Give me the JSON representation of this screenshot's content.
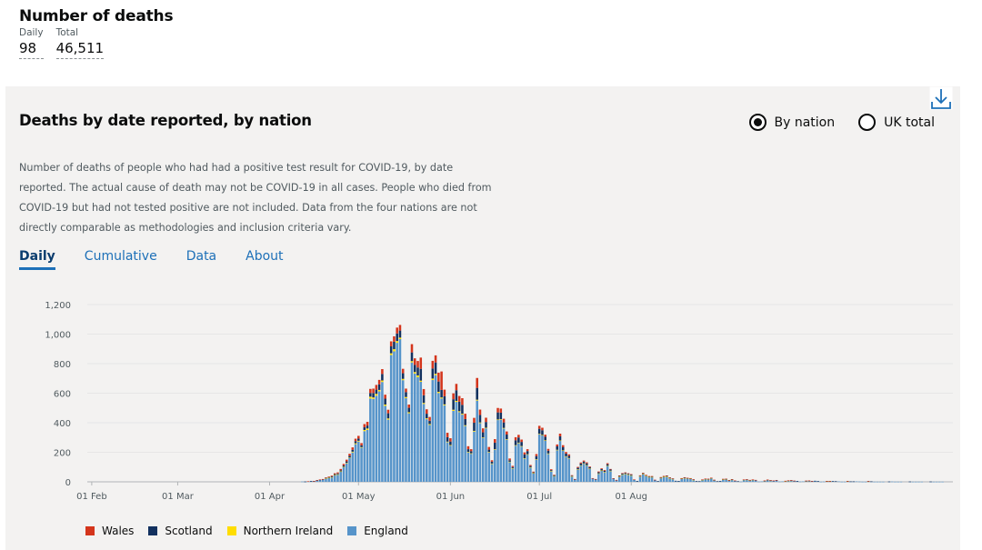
{
  "headline": {
    "title": "Number of deaths",
    "daily_label": "Daily",
    "daily_value": "98",
    "total_label": "Total",
    "total_value": "46,511"
  },
  "card": {
    "title": "Deaths by date reported, by nation",
    "radio_by_nation": "By nation",
    "radio_uk_total": "UK total",
    "description": "Number of deaths of people who had had a positive test result for COVID-19, by date reported. The actual cause of death may not be COVID-19 in all cases. People who died from COVID-19 but had not tested positive are not included. Data from the four nations are not directly comparable as methodologies and inclusion criteria vary.",
    "tabs": [
      "Daily",
      "Cumulative",
      "Data",
      "About"
    ]
  },
  "colors": {
    "wales": "#d4351c",
    "scotland": "#12315f",
    "northern_ireland": "#ffdd00",
    "england": "#5694ca"
  },
  "chart_data": {
    "type": "bar",
    "stacked": true,
    "title": "Deaths by date reported, by nation",
    "ylim": [
      0,
      1200
    ],
    "yticks": [
      0,
      200,
      400,
      600,
      800,
      1000,
      1200
    ],
    "ytick_labels": [
      "0",
      "200",
      "400",
      "600",
      "800",
      "1,000",
      "1,200"
    ],
    "xtick_labels": [
      "01 Feb",
      "01 Mar",
      "01 Apr",
      "01 May",
      "01 Jun",
      "01 Jul",
      "01 Aug"
    ],
    "xtick_day_index": [
      1,
      30,
      61,
      91,
      122,
      152,
      183
    ],
    "start_date": "31 Dec",
    "legend": [
      "Wales",
      "Scotland",
      "Northern Ireland",
      "England"
    ],
    "legend_position": "bottom-left",
    "series": [
      {
        "name": "England",
        "values": [
          0,
          0,
          0,
          0,
          0,
          0,
          0,
          0,
          0,
          0,
          0,
          0,
          0,
          0,
          0,
          0,
          0,
          0,
          0,
          0,
          0,
          0,
          0,
          0,
          0,
          0,
          0,
          0,
          0,
          0,
          0,
          0,
          0,
          0,
          0,
          0,
          0,
          0,
          0,
          0,
          0,
          0,
          0,
          0,
          0,
          0,
          0,
          0,
          0,
          0,
          0,
          0,
          0,
          0,
          0,
          0,
          0,
          0,
          0,
          0,
          0,
          0,
          0,
          0,
          0,
          0,
          0,
          0,
          0,
          0,
          0,
          0,
          2,
          1,
          3,
          5,
          4,
          9,
          12,
          14,
          22,
          27,
          31,
          44,
          49,
          70,
          100,
          125,
          160,
          199,
          255,
          273,
          231,
          343,
          351,
          564,
          561,
          583,
          612,
          676,
          514,
          421,
          858,
          883,
          941,
          966,
          688,
          566,
          464,
          808,
          733,
          708,
          677,
          527,
          424,
          385,
          689,
          722,
          601,
          564,
          518,
          268,
          245,
          480,
          541,
          472,
          455,
          378,
          200,
          190,
          340,
          550,
          397,
          296,
          362,
          199,
          122,
          218,
          418,
          420,
          361,
          286,
          134,
          91,
          245,
          262,
          239,
          158,
          185,
          98,
          58,
          151,
          322,
          314,
          279,
          190,
          72,
          38,
          215,
          278,
          211,
          171,
          160,
          37,
          14,
          84,
          111,
          124,
          112,
          89,
          21,
          16,
          56,
          76,
          66,
          108,
          74,
          21,
          10,
          34,
          49,
          53,
          49,
          43,
          13,
          5,
          37,
          52,
          40,
          32,
          32,
          12,
          4,
          26,
          33,
          36,
          24,
          19,
          6,
          5,
          21,
          25,
          23,
          21,
          13,
          4,
          3,
          12,
          18,
          17,
          24,
          11,
          3,
          5,
          16,
          17,
          9,
          14,
          7,
          3,
          2,
          13,
          14,
          10,
          13,
          11,
          2,
          3,
          6,
          12,
          8,
          7,
          10,
          2,
          3,
          4,
          7,
          8,
          6,
          5,
          2,
          3,
          5,
          6,
          4,
          6,
          4,
          1,
          2,
          3,
          3,
          4,
          3,
          3,
          1,
          1,
          3,
          2,
          2,
          3,
          2,
          1,
          1,
          2,
          2,
          1,
          1,
          1,
          1,
          0,
          1,
          2,
          1,
          1,
          1,
          0,
          0,
          1,
          1,
          1,
          1,
          1,
          0,
          0,
          1,
          1,
          1,
          1,
          1,
          0,
          0
        ]
      },
      {
        "name": "Northern Ireland",
        "values": [
          0,
          0,
          0,
          0,
          0,
          0,
          0,
          0,
          0,
          0,
          0,
          0,
          0,
          0,
          0,
          0,
          0,
          0,
          0,
          0,
          0,
          0,
          0,
          0,
          0,
          0,
          0,
          0,
          0,
          0,
          0,
          0,
          0,
          0,
          0,
          0,
          0,
          0,
          0,
          0,
          0,
          0,
          0,
          0,
          0,
          0,
          0,
          0,
          0,
          0,
          0,
          0,
          0,
          0,
          0,
          0,
          0,
          0,
          0,
          0,
          0,
          0,
          0,
          0,
          0,
          0,
          0,
          0,
          0,
          0,
          0,
          0,
          0,
          0,
          0,
          0,
          0,
          0,
          0,
          0,
          1,
          1,
          1,
          2,
          2,
          1,
          2,
          3,
          4,
          5,
          6,
          5,
          4,
          8,
          10,
          12,
          10,
          12,
          10,
          10,
          9,
          8,
          12,
          15,
          12,
          10,
          9,
          8,
          7,
          9,
          10,
          12,
          8,
          7,
          6,
          6,
          10,
          9,
          8,
          7,
          6,
          4,
          4,
          8,
          7,
          6,
          6,
          5,
          3,
          3,
          5,
          6,
          5,
          4,
          4,
          3,
          2,
          3,
          4,
          4,
          4,
          3,
          2,
          2,
          3,
          3,
          3,
          2,
          2,
          1,
          1,
          2,
          3,
          3,
          2,
          2,
          1,
          1,
          2,
          2,
          2,
          2,
          1,
          1,
          0,
          1,
          1,
          1,
          1,
          1,
          0,
          0,
          1,
          1,
          1,
          1,
          1,
          0,
          0,
          1,
          1,
          1,
          1,
          1,
          0,
          0,
          1,
          1,
          1,
          1,
          1,
          0,
          0,
          1,
          1,
          1,
          1,
          1,
          0,
          0,
          1,
          1,
          1,
          1,
          1,
          0,
          0,
          1,
          1,
          1,
          1,
          1,
          0,
          0,
          1,
          1,
          1,
          1,
          0,
          0,
          0,
          1,
          1,
          1,
          1,
          0,
          0,
          0,
          1,
          1,
          1,
          0,
          0,
          0,
          0,
          1,
          1,
          1,
          0,
          0,
          0,
          0,
          1,
          1,
          0,
          0,
          0,
          0,
          0,
          1,
          1,
          0,
          0,
          0,
          0,
          0,
          1,
          0,
          0,
          0,
          0,
          0,
          0,
          1,
          0,
          0,
          0,
          0,
          0,
          0,
          0,
          0,
          0,
          0,
          0,
          0,
          0,
          0,
          0,
          0,
          0,
          0,
          0,
          0,
          0,
          0,
          0,
          0,
          0,
          0,
          0,
          0,
          0,
          0,
          0
        ]
      },
      {
        "name": "Scotland",
        "values": [
          0,
          0,
          0,
          0,
          0,
          0,
          0,
          0,
          0,
          0,
          0,
          0,
          0,
          0,
          0,
          0,
          0,
          0,
          0,
          0,
          0,
          0,
          0,
          0,
          0,
          0,
          0,
          0,
          0,
          0,
          0,
          0,
          0,
          0,
          0,
          0,
          0,
          0,
          0,
          0,
          0,
          0,
          0,
          0,
          0,
          0,
          0,
          0,
          0,
          0,
          0,
          0,
          0,
          0,
          0,
          0,
          0,
          0,
          0,
          0,
          0,
          0,
          0,
          0,
          0,
          0,
          0,
          0,
          0,
          0,
          0,
          0,
          0,
          1,
          0,
          1,
          1,
          2,
          2,
          3,
          4,
          4,
          5,
          6,
          6,
          7,
          9,
          10,
          12,
          13,
          14,
          15,
          12,
          18,
          20,
          25,
          30,
          29,
          38,
          44,
          40,
          35,
          47,
          50,
          51,
          48,
          38,
          33,
          30,
          59,
          48,
          54,
          80,
          52,
          31,
          22,
          68,
          77,
          70,
          51,
          55,
          30,
          24,
          71,
          72,
          65,
          60,
          42,
          18,
          14,
          55,
          80,
          51,
          35,
          39,
          16,
          12,
          44,
          48,
          44,
          37,
          31,
          10,
          7,
          33,
          35,
          28,
          25,
          21,
          8,
          5,
          21,
          34,
          32,
          24,
          19,
          6,
          5,
          23,
          28,
          21,
          18,
          15,
          4,
          3,
          10,
          12,
          12,
          12,
          9,
          3,
          2,
          8,
          9,
          8,
          10,
          8,
          2,
          2,
          5,
          6,
          6,
          5,
          5,
          2,
          1,
          4,
          5,
          4,
          4,
          4,
          1,
          1,
          3,
          4,
          4,
          3,
          2,
          1,
          1,
          2,
          3,
          2,
          2,
          2,
          1,
          1,
          2,
          2,
          2,
          2,
          1,
          1,
          1,
          2,
          2,
          1,
          2,
          1,
          1,
          0,
          1,
          1,
          1,
          1,
          1,
          0,
          0,
          1,
          1,
          1,
          1,
          1,
          0,
          0,
          1,
          1,
          1,
          1,
          1,
          0,
          0,
          1,
          1,
          1,
          1,
          1,
          0,
          0,
          1,
          1,
          1,
          1,
          0,
          0,
          0,
          1,
          1,
          1,
          0,
          0,
          0,
          0,
          1,
          1,
          0,
          0,
          0,
          0,
          0,
          1,
          0,
          0,
          0,
          0,
          0,
          0,
          1,
          0,
          0,
          0,
          0,
          0,
          0,
          1,
          0,
          0,
          0,
          0,
          0,
          0
        ]
      },
      {
        "name": "Wales",
        "values": [
          0,
          0,
          0,
          0,
          0,
          0,
          0,
          0,
          0,
          0,
          0,
          0,
          0,
          0,
          0,
          0,
          0,
          0,
          0,
          0,
          0,
          0,
          0,
          0,
          0,
          0,
          0,
          0,
          0,
          0,
          0,
          0,
          0,
          0,
          0,
          0,
          0,
          0,
          0,
          0,
          0,
          0,
          0,
          0,
          0,
          0,
          0,
          0,
          0,
          0,
          0,
          0,
          0,
          0,
          0,
          0,
          0,
          0,
          0,
          0,
          0,
          0,
          0,
          0,
          0,
          0,
          0,
          0,
          0,
          0,
          0,
          0,
          0,
          0,
          1,
          0,
          1,
          1,
          2,
          2,
          3,
          4,
          5,
          6,
          7,
          9,
          10,
          12,
          14,
          16,
          17,
          18,
          15,
          22,
          25,
          28,
          30,
          32,
          30,
          33,
          27,
          24,
          34,
          37,
          40,
          38,
          30,
          24,
          22,
          56,
          45,
          44,
          76,
          42,
          30,
          26,
          52,
          48,
          60,
          125,
          45,
          30,
          22,
          40,
          43,
          38,
          45,
          36,
          20,
          14,
          33,
          67,
          36,
          27,
          29,
          18,
          10,
          24,
          30,
          28,
          25,
          21,
          12,
          8,
          21,
          18,
          16,
          14,
          13,
          7,
          5,
          14,
          20,
          17,
          14,
          12,
          6,
          4,
          13,
          18,
          14,
          11,
          10,
          3,
          2,
          6,
          7,
          7,
          7,
          5,
          1,
          1,
          5,
          5,
          5,
          7,
          4,
          1,
          1,
          3,
          3,
          4,
          3,
          3,
          1,
          0,
          2,
          3,
          2,
          2,
          2,
          1,
          0,
          2,
          2,
          2,
          2,
          1,
          0,
          0,
          1,
          2,
          1,
          1,
          1,
          0,
          0,
          1,
          1,
          1,
          1,
          1,
          0,
          0,
          1,
          1,
          1,
          1,
          1,
          0,
          0,
          1,
          1,
          1,
          1,
          1,
          0,
          0,
          1,
          1,
          1,
          1,
          1,
          0,
          0,
          1,
          1,
          1,
          1,
          0,
          0,
          0,
          1,
          1,
          1,
          0,
          0,
          0,
          0,
          1,
          1,
          0,
          0,
          0,
          0,
          0,
          1,
          0,
          0,
          0,
          0,
          0,
          0,
          1,
          0,
          0,
          0,
          0,
          0,
          0,
          0,
          0,
          0,
          0,
          0,
          0,
          0,
          0,
          0,
          0,
          0,
          0,
          0,
          0,
          0,
          0,
          0,
          0,
          0,
          0,
          0,
          0,
          0,
          0,
          0
        ]
      }
    ]
  }
}
